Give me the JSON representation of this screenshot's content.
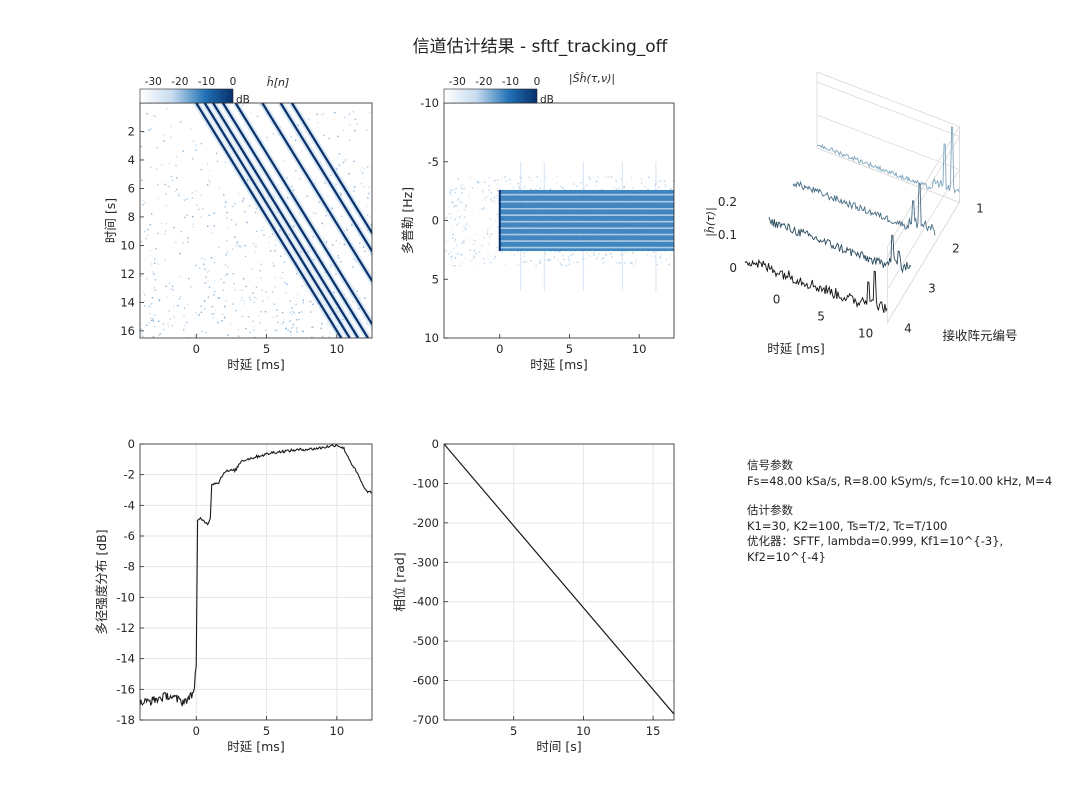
{
  "title": "信道估计结果 - sftf_tracking_off",
  "colors": {
    "line": "#1a1a1a",
    "grid": "#e6e6e6",
    "axis": "#262626",
    "cmap_dark": "#08306b",
    "cmap_mid": "#2171b5",
    "cmap_light": "#c6dbef"
  },
  "info": {
    "signal_title": "信号参数",
    "signal_line": "Fs=48.00 kSa/s, R=8.00 kSym/s, fc=10.00 kHz, M=4",
    "est_title": "估计参数",
    "est_line1": "K1=30, K2=100, Ts=T/2, Tc=T/100",
    "est_line2": "优化器：SFTF, lambda=0.999, Kf1=10^{-3}, Kf2=10^{-4}"
  },
  "chart_data": [
    {
      "id": "channel-impulse",
      "type": "heatmap",
      "title": "ĥ[n]",
      "xlabel": "时延 [ms]",
      "ylabel": "时间 [s]",
      "xlim": [
        -4,
        12.5
      ],
      "ylim": [
        0,
        16.5
      ],
      "xticks": [
        0,
        5,
        10
      ],
      "yticks": [
        2,
        4,
        6,
        8,
        10,
        12,
        14,
        16
      ],
      "colorbar": {
        "ticks": [
          -30,
          -20,
          -10,
          0
        ],
        "unit": "dB",
        "range": [
          -35,
          0
        ]
      },
      "paths": [
        {
          "delay_at_t0": 0.0,
          "delay_at_t16": 10.0
        },
        {
          "delay_at_t0": 0.6,
          "delay_at_t16": 10.6
        },
        {
          "delay_at_t0": 1.2,
          "delay_at_t16": 11.2
        },
        {
          "delay_at_t0": 1.9,
          "delay_at_t16": 11.9
        },
        {
          "delay_at_t0": 2.8,
          "delay_at_t16": 12.8
        },
        {
          "delay_at_t0": 4.7,
          "delay_at_t16": 14.7
        },
        {
          "delay_at_t0": 6.0,
          "delay_at_t16": 16.0
        },
        {
          "delay_at_t0": 6.8,
          "delay_at_t16": 16.8
        }
      ]
    },
    {
      "id": "scattering-function",
      "type": "heatmap",
      "title": "|Ŝĥ(τ,ν)|",
      "xlabel": "时延 [ms]",
      "ylabel": "多普勒 [Hz]",
      "xlim": [
        -4,
        12.5
      ],
      "ylim": [
        -10,
        10
      ],
      "xticks": [
        0,
        5,
        10
      ],
      "yticks": [
        -10,
        -5,
        0,
        5,
        10
      ],
      "colorbar": {
        "ticks": [
          -30,
          -20,
          -10,
          0
        ],
        "unit": "dB",
        "range": [
          -35,
          0
        ]
      },
      "block": {
        "delay_range": [
          0,
          12.5
        ],
        "doppler_range": [
          -2.6,
          2.6
        ],
        "doppler_lines": [
          -2.2,
          -1.6,
          -1.0,
          -0.45,
          0.1,
          0.65,
          1.2,
          1.75,
          2.3
        ]
      }
    },
    {
      "id": "per-element-delay",
      "type": "line",
      "zlabel": "|ĥ(τ)|",
      "xlabel": "时延 [ms]",
      "ylabel": "接收阵元编号",
      "xticks": [
        0,
        5,
        10
      ],
      "yticks": [
        1,
        2,
        3,
        4
      ],
      "zticks": [
        0,
        0.1,
        0.2
      ],
      "series": [
        {
          "name": "1",
          "floor": 0.01,
          "peaks": [
            {
              "delay": 10.3,
              "value": 0.16
            },
            {
              "delay": 11.2,
              "value": 0.22
            }
          ]
        },
        {
          "name": "2",
          "floor": 0.015,
          "peaks": [
            {
              "delay": 9.5,
              "value": 0.1
            },
            {
              "delay": 10.2,
              "value": 0.16
            }
          ]
        },
        {
          "name": "3",
          "floor": 0.02,
          "peaks": [
            {
              "delay": 9.8,
              "value": 0.12
            },
            {
              "delay": 10.6,
              "value": 0.08
            }
          ]
        },
        {
          "name": "4",
          "floor": 0.025,
          "peaks": [
            {
              "delay": 9.9,
              "value": 0.1
            },
            {
              "delay": 10.6,
              "value": 0.14
            }
          ]
        }
      ]
    },
    {
      "id": "power-delay-profile",
      "type": "line",
      "xlabel": "时延 [ms]",
      "ylabel": "多径强度分布 [dB]",
      "xlim": [
        -4,
        12.5
      ],
      "ylim": [
        -18,
        0
      ],
      "xticks": [
        0,
        5,
        10
      ],
      "yticks": [
        0,
        -2,
        -4,
        -6,
        -8,
        -10,
        -12,
        -14,
        -16,
        -18
      ],
      "x": [
        -4,
        -3,
        -2,
        -1,
        -0.5,
        -0.2,
        0,
        0.1,
        0.3,
        0.8,
        1.0,
        1.1,
        1.6,
        2.0,
        2.8,
        3.2,
        4.6,
        5.5,
        7.0,
        8.5,
        9.5,
        10.0,
        10.5,
        11.0,
        11.5,
        12.0,
        12.5
      ],
      "values": [
        -16.9,
        -16.7,
        -16.4,
        -16.8,
        -16.6,
        -16.2,
        -14.5,
        -5.0,
        -4.9,
        -5.2,
        -4.9,
        -2.6,
        -2.5,
        -1.8,
        -1.7,
        -1.1,
        -0.75,
        -0.55,
        -0.4,
        -0.3,
        -0.15,
        -0.05,
        -0.3,
        -1.2,
        -2.0,
        -3.0,
        -3.2
      ]
    },
    {
      "id": "phase",
      "type": "line",
      "xlabel": "时间 [s]",
      "ylabel": "相位 [rad]",
      "xlim": [
        0,
        16.5
      ],
      "ylim": [
        -700,
        0
      ],
      "xticks": [
        5,
        10,
        15
      ],
      "yticks": [
        0,
        -100,
        -200,
        -300,
        -400,
        -500,
        -600,
        -700
      ],
      "x": [
        0,
        16.5
      ],
      "values": [
        0,
        -685
      ]
    }
  ]
}
